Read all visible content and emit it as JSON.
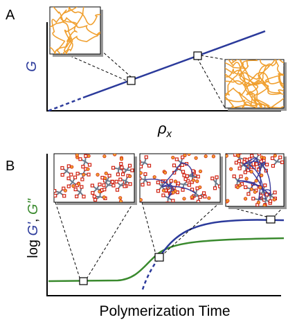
{
  "panels": [
    {
      "label": "A",
      "y_axis": "G",
      "x_axis": {
        "symbol": "ρ",
        "subscript": "x"
      }
    },
    {
      "label": "B",
      "y_axis": {
        "prefix": "log ",
        "g_prime": "G'",
        "separator": ", ",
        "g_double_prime": "G\""
      },
      "x_axis": "Polymerization Time"
    }
  ]
}
